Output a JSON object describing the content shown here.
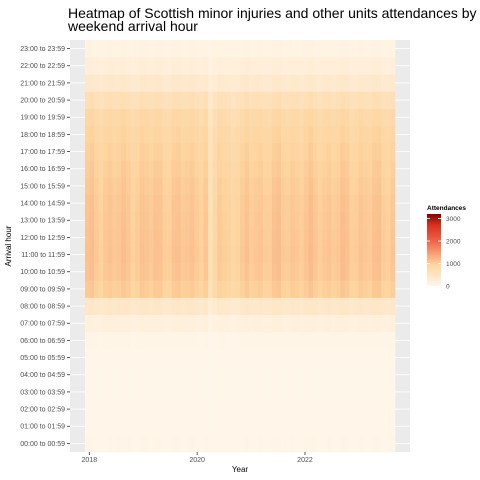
{
  "chart_data": {
    "type": "heatmap",
    "title_lines": [
      "Heatmap of Scottish minor injuries and other units attendances by",
      "weekend arrival hour"
    ],
    "xlabel": "Year",
    "ylabel": "Arrival hour",
    "x_ticks": [
      2018,
      2020,
      2022
    ],
    "x_range": [
      2017.92,
      2023.67
    ],
    "y_categories": [
      "00:00 to 00:59",
      "01:00 to 01:59",
      "02:00 to 02:59",
      "03:00 to 03:59",
      "04:00 to 04:59",
      "05:00 to 05:59",
      "06:00 to 06:59",
      "07:00 to 07:59",
      "08:00 to 08:59",
      "09:00 to 09:59",
      "10:00 to 10:59",
      "11:00 to 11:59",
      "12:00 to 12:59",
      "13:00 to 13:59",
      "14:00 to 14:59",
      "15:00 to 15:59",
      "16:00 to 16:59",
      "17:00 to 17:59",
      "18:00 to 18:59",
      "19:00 to 19:59",
      "20:00 to 20:59",
      "21:00 to 21:59",
      "22:00 to 22:59",
      "23:00 to 23:59"
    ],
    "hour_base_values": [
      55,
      40,
      35,
      30,
      30,
      35,
      60,
      180,
      420,
      1000,
      1060,
      1080,
      1070,
      1060,
      1050,
      1020,
      980,
      940,
      890,
      820,
      640,
      380,
      230,
      120
    ],
    "months": 68,
    "covid_dip_month": 27,
    "legend": {
      "title": "Attendances",
      "ticks": [
        0,
        1000,
        2000,
        3000
      ],
      "min": 0,
      "max": 3200,
      "position": "right"
    },
    "colors": {
      "low": "#fff7ec",
      "mid": "#fdd49e",
      "high": "#d7301f",
      "max": "#7f0000",
      "panel_bg": "#ebebeb",
      "grid": "#ffffff"
    }
  }
}
